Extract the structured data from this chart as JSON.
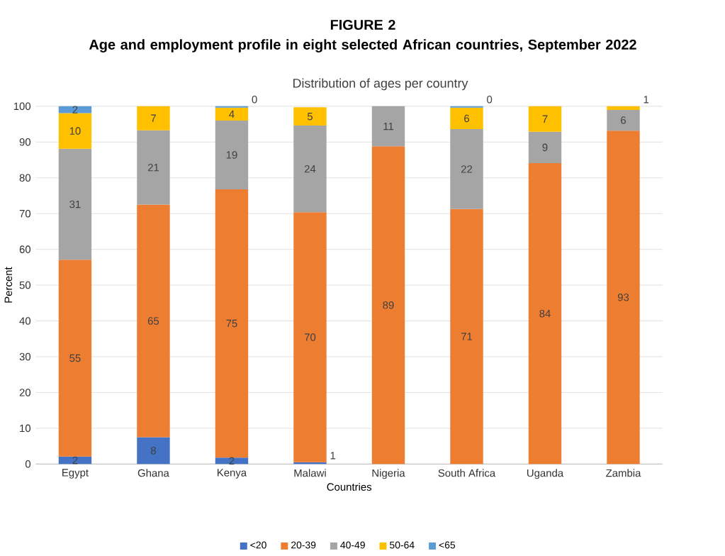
{
  "chart_data": {
    "type": "bar",
    "stacked": true,
    "title": "FIGURE 2\nAge and employment profile in eight selected African countries, September 2022",
    "subtitle": "Distribution of ages per country",
    "xlabel": "Countries",
    "ylabel": "Percent",
    "categories": [
      "Egypt",
      "Ghana",
      "Kenya",
      "Malawi",
      "Nigeria",
      "South Africa",
      "Uganda",
      "Zambia"
    ],
    "series": [
      {
        "name": "<20",
        "color": "#4472c4",
        "values": [
          2.1,
          7.5,
          1.8,
          0.5,
          null,
          null,
          null,
          null
        ],
        "value_labels": [
          "2",
          "8",
          "2",
          "1",
          null,
          null,
          null,
          null
        ]
      },
      {
        "name": "20-39",
        "color": "#ed7d31",
        "values": [
          55,
          65,
          75,
          69.9,
          88.8,
          71.3,
          84.1,
          93.2
        ],
        "value_labels": [
          "55",
          "65",
          "75",
          "70",
          "89",
          "71",
          "84",
          "93"
        ]
      },
      {
        "name": "40-49",
        "color": "#a5a5a5",
        "values": [
          31,
          20.8,
          19.2,
          24.2,
          11.2,
          22.3,
          8.8,
          5.8
        ],
        "value_labels": [
          "31",
          "21",
          "19",
          "24",
          "11",
          "22",
          "9",
          "6"
        ]
      },
      {
        "name": "50-64",
        "color": "#ffc000",
        "values": [
          10,
          6.7,
          3.6,
          5.1,
          null,
          6,
          7.1,
          1
        ],
        "value_labels": [
          "10",
          "7",
          "4",
          "5",
          null,
          "6",
          "7",
          "1"
        ]
      },
      {
        "name": "<65",
        "color": "#5b9bd5",
        "values": [
          1.9,
          null,
          0.4,
          null,
          null,
          0.4,
          null,
          null
        ],
        "value_labels": [
          "2",
          null,
          "0",
          null,
          null,
          "0",
          null,
          null
        ]
      }
    ],
    "ylim": [
      0,
      100
    ],
    "yticks": [
      0,
      10,
      20,
      30,
      40,
      50,
      60,
      70,
      80,
      90,
      100
    ],
    "grid": "y",
    "legend": "bottom"
  }
}
